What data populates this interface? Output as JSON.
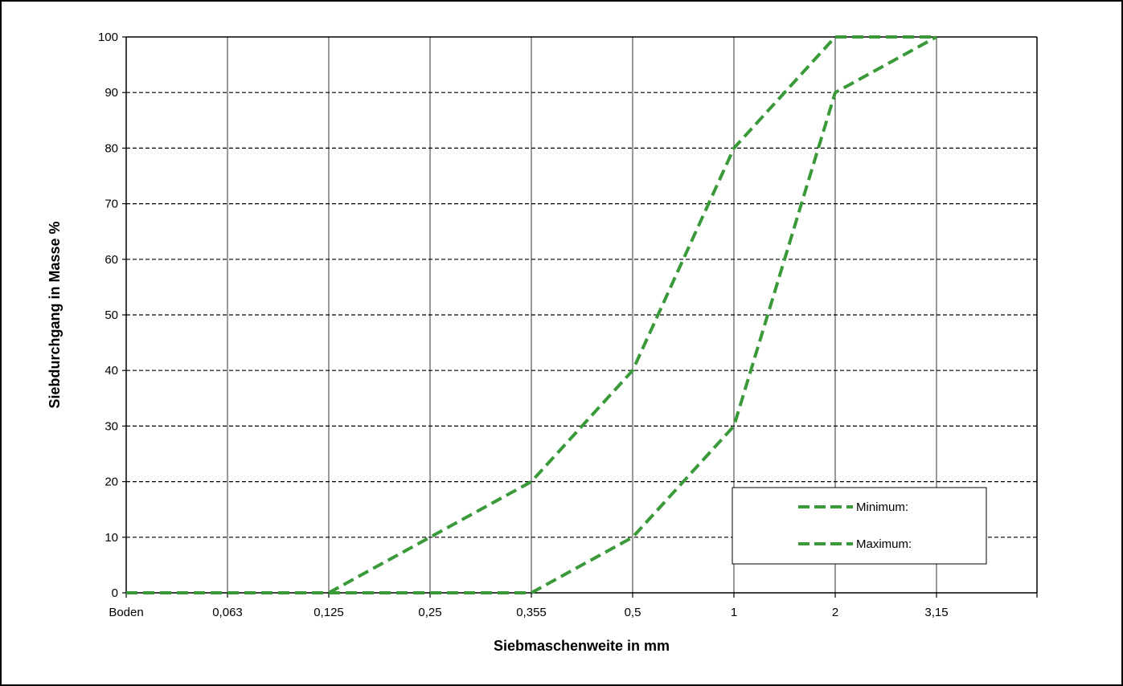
{
  "chart_data": {
    "type": "line",
    "title": "",
    "xlabel": "Siebmaschenweite in mm",
    "ylabel": "Siebdurchgang in Masse %",
    "categories": [
      "Boden",
      "0,063",
      "0,125",
      "0,25",
      "0,355",
      "0,5",
      "1",
      "2",
      "3,15"
    ],
    "ylim": [
      0,
      100
    ],
    "yticks": [
      0,
      10,
      20,
      30,
      40,
      50,
      60,
      70,
      80,
      90,
      100
    ],
    "grid": "horizontal dashed, vertical solid",
    "legend_position": "bottom-right",
    "series": [
      {
        "name": "Minimum:",
        "color": "#3a9a3a",
        "values": [
          0,
          0,
          0,
          0,
          0,
          10,
          30,
          90,
          100
        ]
      },
      {
        "name": "Maximum:",
        "color": "#3a9a3a",
        "values": [
          0,
          0,
          0,
          10,
          20,
          40,
          80,
          100,
          100
        ]
      }
    ]
  }
}
